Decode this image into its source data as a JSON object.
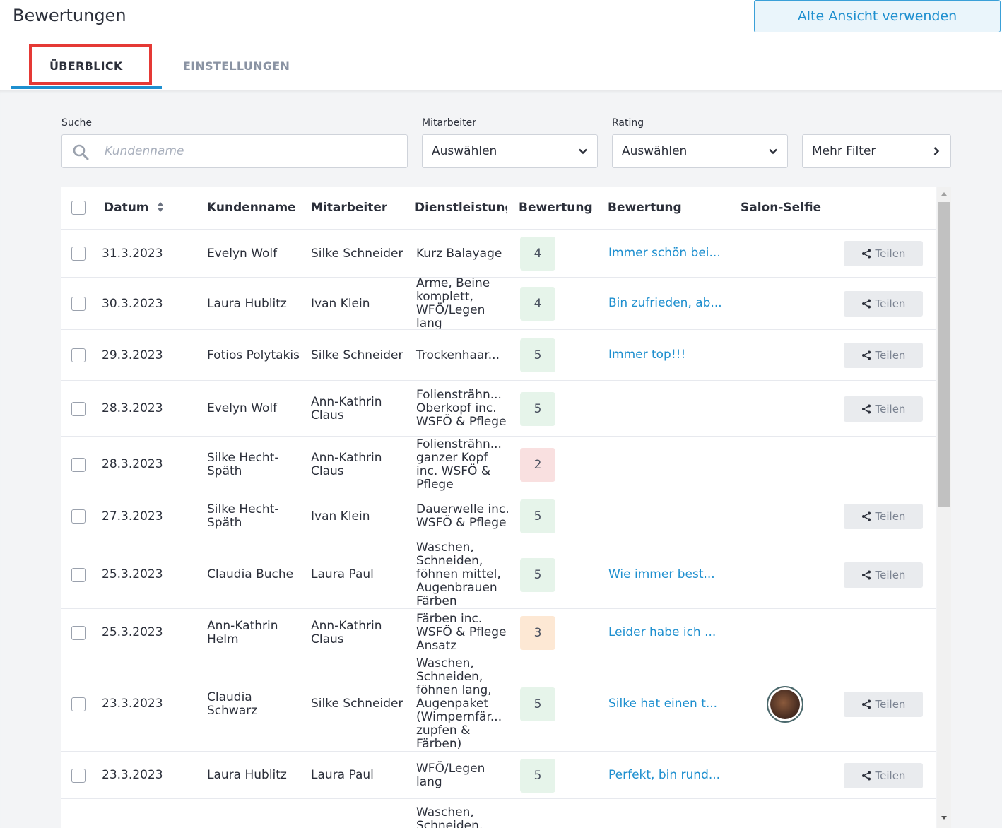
{
  "header": {
    "title": "Bewertungen",
    "old_view_button": "Alte Ansicht verwenden",
    "tabs": [
      {
        "label": "ÜBERBLICK",
        "active": true
      },
      {
        "label": "EINSTELLUNGEN",
        "active": false
      }
    ]
  },
  "filters": {
    "search_label": "Suche",
    "search_placeholder": "Kundenname",
    "employee_label": "Mitarbeiter",
    "employee_value": "Auswählen",
    "rating_label": "Rating",
    "rating_value": "Auswählen",
    "more_filters": "Mehr Filter"
  },
  "table": {
    "columns": [
      "Datum",
      "Kundenname",
      "Mitarbeiter",
      "Dienstleistung",
      "Bewertung",
      "Bewertung",
      "Salon-Selfie"
    ],
    "share_label": "Teilen",
    "rows": [
      {
        "date": "31.3.2023",
        "customer": "Evelyn Wolf",
        "employee": "Silke Schneider",
        "service": "Kurz Balayage",
        "rating": "4",
        "comment": "Immer schön bei...",
        "selfie": false,
        "share": true
      },
      {
        "date": "30.3.2023",
        "customer": "Laura Hublitz",
        "employee": "Ivan Klein",
        "service": "Arme, Beine komplett, WFÖ/Legen lang",
        "rating": "4",
        "comment": "Bin zufrieden, ab...",
        "selfie": false,
        "share": true
      },
      {
        "date": "29.3.2023",
        "customer": "Fotios Polytakis",
        "employee": "Silke Schneider",
        "service": "Trockenhaar...",
        "rating": "5",
        "comment": "Immer top!!!",
        "selfie": false,
        "share": true
      },
      {
        "date": "28.3.2023",
        "customer": "Evelyn Wolf",
        "employee": "Ann-Kathrin Claus",
        "service": "Foliensträhn... Oberkopf inc. WSFÖ & Pflege",
        "rating": "5",
        "comment": "",
        "selfie": false,
        "share": true
      },
      {
        "date": "28.3.2023",
        "customer": "Silke Hecht-Späth",
        "employee": "Ann-Kathrin Claus",
        "service": "Foliensträhn... ganzer Kopf inc. WSFÖ & Pflege",
        "rating": "2",
        "comment": "",
        "selfie": false,
        "share": false
      },
      {
        "date": "27.3.2023",
        "customer": "Silke Hecht-Späth",
        "employee": "Ivan Klein",
        "service": "Dauerwelle inc. WSFÖ & Pflege",
        "rating": "5",
        "comment": "",
        "selfie": false,
        "share": true
      },
      {
        "date": "25.3.2023",
        "customer": "Claudia Buche",
        "employee": "Laura Paul",
        "service": "Waschen, Schneiden, föhnen mittel, Augenbrauen Färben",
        "rating": "5",
        "comment": "Wie immer best...",
        "selfie": false,
        "share": true
      },
      {
        "date": "25.3.2023",
        "customer": "Ann-Kathrin Helm",
        "employee": "Ann-Kathrin Claus",
        "service": "Färben inc. WSFÖ & Pflege Ansatz",
        "rating": "3",
        "comment": "Leider habe ich ...",
        "selfie": false,
        "share": false
      },
      {
        "date": "23.3.2023",
        "customer": "Claudia Schwarz",
        "employee": "Silke Schneider",
        "service": "Waschen, Schneiden, föhnen lang, Augenpaket (Wimpernfär... zupfen & Färben)",
        "rating": "5",
        "comment": "Silke hat einen t...",
        "selfie": true,
        "share": true
      },
      {
        "date": "23.3.2023",
        "customer": "Laura Hublitz",
        "employee": "Laura Paul",
        "service": "WFÖ/Legen lang",
        "rating": "5",
        "comment": "Perfekt, bin rund...",
        "selfie": false,
        "share": true
      },
      {
        "date": "",
        "customer": "",
        "employee": "",
        "service": "Waschen, Schneiden,",
        "rating": "",
        "comment": "",
        "selfie": false,
        "share": false
      }
    ]
  },
  "colors": {
    "accent": "#1e8fcf",
    "rating_good": "#e6f4ea",
    "rating_mid": "#fde8d4",
    "rating_bad": "#f9e0e0",
    "highlight": "#e53935"
  }
}
